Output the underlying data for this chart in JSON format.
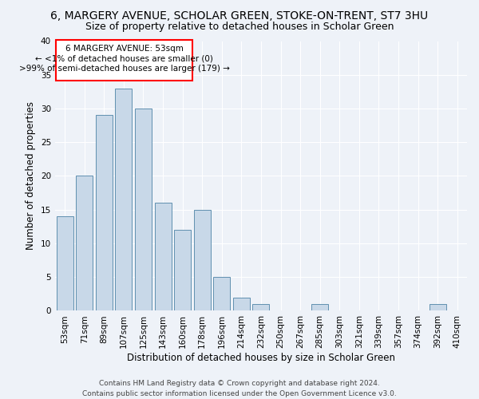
{
  "title": "6, MARGERY AVENUE, SCHOLAR GREEN, STOKE-ON-TRENT, ST7 3HU",
  "subtitle": "Size of property relative to detached houses in Scholar Green",
  "xlabel": "Distribution of detached houses by size in Scholar Green",
  "ylabel": "Number of detached properties",
  "bar_color": "#c8d8e8",
  "bar_edge_color": "#6090b0",
  "categories": [
    "53sqm",
    "71sqm",
    "89sqm",
    "107sqm",
    "125sqm",
    "143sqm",
    "160sqm",
    "178sqm",
    "196sqm",
    "214sqm",
    "232sqm",
    "250sqm",
    "267sqm",
    "285sqm",
    "303sqm",
    "321sqm",
    "339sqm",
    "357sqm",
    "374sqm",
    "392sqm",
    "410sqm"
  ],
  "values": [
    14,
    20,
    29,
    33,
    30,
    16,
    12,
    15,
    5,
    2,
    1,
    0,
    0,
    1,
    0,
    0,
    0,
    0,
    0,
    1,
    0
  ],
  "ylim": [
    0,
    40
  ],
  "annotation_line1": "6 MARGERY AVENUE: 53sqm",
  "annotation_line2": "← <1% of detached houses are smaller (0)",
  "annotation_line3": ">99% of semi-detached houses are larger (179) →",
  "footer1": "Contains HM Land Registry data © Crown copyright and database right 2024.",
  "footer2": "Contains public sector information licensed under the Open Government Licence v3.0.",
  "background_color": "#eef2f8",
  "grid_color": "#ffffff",
  "title_fontsize": 10,
  "subtitle_fontsize": 9,
  "xlabel_fontsize": 8.5,
  "ylabel_fontsize": 8.5,
  "tick_fontsize": 7.5,
  "annotation_fontsize": 7.5,
  "footer_fontsize": 6.5
}
